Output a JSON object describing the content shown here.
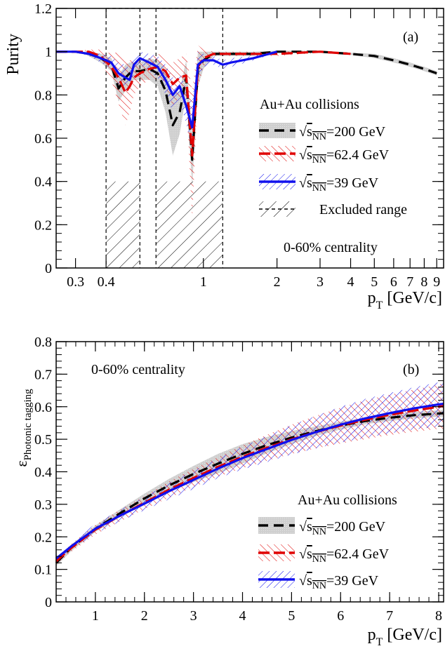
{
  "chart_data": [
    {
      "type": "line",
      "panel_label": "(a)",
      "ylabel": "Purity",
      "xlabel": {
        "main": "p",
        "sub": "T",
        "unit": " [GeV/c]"
      },
      "x_scale": "log",
      "xlim": [
        0.25,
        9.6
      ],
      "ylim": [
        0,
        1.2
      ],
      "x_ticks": [
        {
          "v": 0.3,
          "label": "0.3"
        },
        {
          "v": 0.4,
          "label": "0.4"
        },
        {
          "v": 1,
          "label": "1"
        },
        {
          "v": 2,
          "label": "2"
        },
        {
          "v": 3,
          "label": "3"
        },
        {
          "v": 4,
          "label": "4"
        },
        {
          "v": 5,
          "label": "5"
        },
        {
          "v": 6,
          "label": "6"
        },
        {
          "v": 7,
          "label": "7"
        },
        {
          "v": 8,
          "label": "8"
        },
        {
          "v": 9,
          "label": "9"
        }
      ],
      "y_ticks": [
        {
          "v": 0,
          "label": "0"
        },
        {
          "v": 0.2,
          "label": "0.2"
        },
        {
          "v": 0.4,
          "label": "0.4"
        },
        {
          "v": 0.6,
          "label": "0.6"
        },
        {
          "v": 0.8,
          "label": "0.8"
        },
        {
          "v": 1.0,
          "label": "1"
        },
        {
          "v": 1.2,
          "label": "1.2"
        }
      ],
      "excluded_ranges": [
        [
          0.4,
          0.55
        ],
        [
          0.64,
          1.2
        ]
      ],
      "annotations": {
        "collision": "Au+Au collisions",
        "centrality": "0-60% centrality"
      },
      "legend_placement": "right",
      "legend_extra": "Excluded range",
      "series": [
        {
          "energy": "=200 GeV",
          "color": "#000000",
          "dash": "14,8",
          "band": "solid-gray",
          "x": [
            0.25,
            0.3,
            0.34,
            0.38,
            0.42,
            0.45,
            0.48,
            0.5,
            0.52,
            0.55,
            0.6,
            0.65,
            0.7,
            0.75,
            0.8,
            0.85,
            0.9,
            0.95,
            1.0,
            1.1,
            1.3,
            1.6,
            2.0,
            3.0,
            4.0,
            5.0,
            6.0,
            7.0,
            8.0,
            9.0
          ],
          "y": [
            1.0,
            1.0,
            0.99,
            0.97,
            0.94,
            0.83,
            0.88,
            0.9,
            0.91,
            0.91,
            0.92,
            0.9,
            0.82,
            0.66,
            0.72,
            0.88,
            0.5,
            0.92,
            0.96,
            0.99,
            0.99,
            0.99,
            1.0,
            1.0,
            0.99,
            0.98,
            0.96,
            0.94,
            0.92,
            0.9
          ],
          "err": [
            0,
            0,
            0.01,
            0.02,
            0.03,
            0.06,
            0.06,
            0.05,
            0.04,
            0.04,
            0.05,
            0.06,
            0.1,
            0.14,
            0.1,
            0.08,
            0.12,
            0.08,
            0.04,
            0.01,
            0.01,
            0.01,
            0.005,
            0.005,
            0.005,
            0.01,
            0.01,
            0.01,
            0.01,
            0.01
          ]
        },
        {
          "energy": "=62.4 GeV",
          "color": "#e00000",
          "dash": "16,6",
          "band": "hatch-red",
          "x": [
            0.25,
            0.3,
            0.34,
            0.38,
            0.42,
            0.45,
            0.48,
            0.5,
            0.52,
            0.55,
            0.6,
            0.65,
            0.7,
            0.75,
            0.8,
            0.85,
            0.9,
            0.95,
            1.0,
            1.1,
            1.3,
            1.6,
            2.0,
            3.0,
            4.0
          ],
          "y": [
            1.0,
            1.0,
            1.0,
            0.98,
            0.93,
            0.88,
            0.81,
            0.84,
            0.88,
            0.9,
            0.92,
            0.93,
            0.91,
            0.85,
            0.88,
            0.89,
            0.52,
            0.93,
            0.97,
            0.99,
            0.99,
            0.99,
            0.99,
            1.0,
            0.99
          ],
          "err": [
            0,
            0,
            0.01,
            0.03,
            0.06,
            0.12,
            0.15,
            0.12,
            0.08,
            0.06,
            0.05,
            0.06,
            0.07,
            0.1,
            0.09,
            0.1,
            0.3,
            0.1,
            0.04,
            0.01,
            0.01,
            0.01,
            0.01,
            0.005,
            0.005
          ]
        },
        {
          "energy": "=39 GeV",
          "color": "#1010ee",
          "dash": "",
          "band": "hatch-blue",
          "x": [
            0.25,
            0.3,
            0.34,
            0.38,
            0.42,
            0.45,
            0.48,
            0.5,
            0.52,
            0.55,
            0.6,
            0.65,
            0.7,
            0.75,
            0.8,
            0.85,
            0.9,
            0.95,
            1.0,
            1.1,
            1.2,
            1.3,
            1.6,
            2.0
          ],
          "y": [
            1.0,
            1.0,
            0.99,
            0.97,
            0.95,
            0.9,
            0.88,
            0.87,
            0.94,
            0.97,
            0.95,
            0.93,
            0.87,
            0.8,
            0.84,
            0.75,
            0.65,
            0.94,
            0.96,
            0.96,
            0.94,
            0.95,
            0.97,
            1.0
          ],
          "err": [
            0,
            0,
            0.01,
            0.02,
            0.03,
            0.05,
            0.06,
            0.05,
            0.04,
            0.03,
            0.04,
            0.05,
            0.07,
            0.08,
            0.07,
            0.08,
            0.12,
            0.06,
            0.03,
            0.02,
            0.02,
            0.02,
            0.01,
            0.005
          ]
        }
      ]
    },
    {
      "type": "line",
      "panel_label": "(b)",
      "ylabel": {
        "main": "ε",
        "sub": "Photonic tagging"
      },
      "xlabel": {
        "main": "p",
        "sub": "T",
        "unit": " [GeV/c]"
      },
      "x_scale": "linear",
      "xlim": [
        0.2,
        8.1
      ],
      "ylim": [
        0,
        0.8
      ],
      "x_ticks": [
        {
          "v": 1,
          "label": "1"
        },
        {
          "v": 2,
          "label": "2"
        },
        {
          "v": 3,
          "label": "3"
        },
        {
          "v": 4,
          "label": "4"
        },
        {
          "v": 5,
          "label": "5"
        },
        {
          "v": 6,
          "label": "6"
        },
        {
          "v": 7,
          "label": "7"
        },
        {
          "v": 8,
          "label": "8"
        }
      ],
      "y_ticks": [
        {
          "v": 0,
          "label": "0"
        },
        {
          "v": 0.1,
          "label": "0.1"
        },
        {
          "v": 0.2,
          "label": "0.2"
        },
        {
          "v": 0.3,
          "label": "0.3"
        },
        {
          "v": 0.4,
          "label": "0.4"
        },
        {
          "v": 0.5,
          "label": "0.5"
        },
        {
          "v": 0.6,
          "label": "0.6"
        },
        {
          "v": 0.7,
          "label": "0.7"
        },
        {
          "v": 0.8,
          "label": "0.8"
        }
      ],
      "annotations": {
        "collision": "Au+Au collisions",
        "centrality": "0-60% centrality"
      },
      "legend_placement": "bottom-right",
      "series": [
        {
          "energy": "=200 GeV",
          "color": "#000000",
          "dash": "14,8",
          "band": "solid-gray",
          "x": [
            0.2,
            0.5,
            1.0,
            1.5,
            2.0,
            2.5,
            3.0,
            3.5,
            4.0,
            4.5,
            5.0,
            5.5,
            6.0,
            6.5,
            7.0,
            7.5,
            8.0,
            8.1
          ],
          "y": [
            0.12,
            0.165,
            0.225,
            0.272,
            0.318,
            0.358,
            0.393,
            0.425,
            0.455,
            0.482,
            0.505,
            0.525,
            0.542,
            0.556,
            0.566,
            0.574,
            0.579,
            0.58
          ],
          "err": [
            0.01,
            0.01,
            0.01,
            0.012,
            0.015,
            0.02,
            0.025,
            0.03,
            0.03,
            0.025,
            0.02,
            0.015,
            0.012,
            0.01,
            0.01,
            0.01,
            0.01,
            0.01
          ]
        },
        {
          "energy": "=62.4 GeV",
          "color": "#e00000",
          "dash": "16,6",
          "band": "hatch-red",
          "x": [
            0.2,
            0.5,
            1.0,
            1.5,
            2.0,
            2.5,
            3.0,
            3.5,
            4.0,
            4.5,
            5.0,
            5.5,
            6.0,
            6.5,
            7.0,
            7.5,
            8.0,
            8.1
          ],
          "y": [
            0.125,
            0.165,
            0.222,
            0.265,
            0.305,
            0.345,
            0.381,
            0.415,
            0.446,
            0.474,
            0.5,
            0.522,
            0.542,
            0.56,
            0.575,
            0.588,
            0.6,
            0.602
          ],
          "err": [
            0.01,
            0.012,
            0.015,
            0.018,
            0.02,
            0.025,
            0.028,
            0.03,
            0.035,
            0.04,
            0.045,
            0.05,
            0.055,
            0.06,
            0.062,
            0.065,
            0.068,
            0.07
          ]
        },
        {
          "energy": "=39 GeV",
          "color": "#1010ee",
          "dash": "",
          "band": "hatch-blue",
          "x": [
            0.2,
            0.5,
            1.0,
            1.5,
            2.0,
            2.5,
            3.0,
            3.5,
            4.0,
            4.5,
            5.0,
            5.5,
            6.0,
            6.5,
            7.0,
            7.5,
            8.0,
            8.1
          ],
          "y": [
            0.133,
            0.17,
            0.225,
            0.265,
            0.302,
            0.34,
            0.375,
            0.41,
            0.442,
            0.47,
            0.498,
            0.522,
            0.545,
            0.564,
            0.58,
            0.595,
            0.607,
            0.609
          ],
          "err": [
            0.01,
            0.012,
            0.015,
            0.018,
            0.02,
            0.025,
            0.028,
            0.03,
            0.035,
            0.04,
            0.045,
            0.05,
            0.055,
            0.06,
            0.062,
            0.065,
            0.068,
            0.07
          ]
        }
      ]
    }
  ],
  "legend_common": {
    "sqrt_symbol": "√",
    "s_main": "s",
    "s_sub": "NN"
  }
}
